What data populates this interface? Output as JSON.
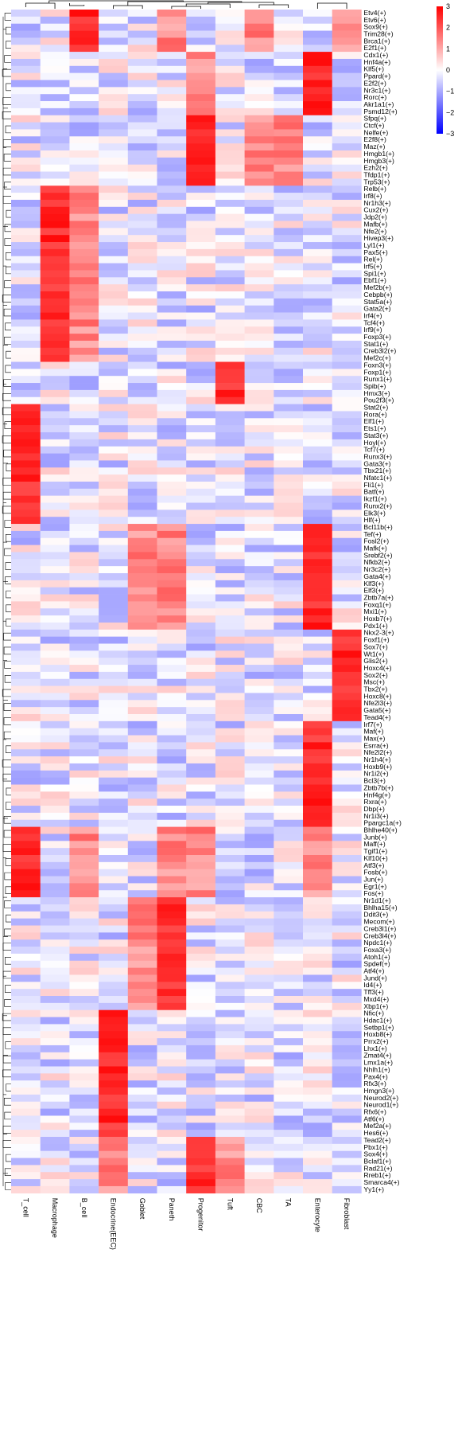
{
  "chart_data": {
    "type": "heatmap",
    "title": "",
    "xlabel": "",
    "ylabel": "",
    "columns": [
      "T_cell",
      "Macrophage",
      "B_cell",
      "Endocrine(EEC)",
      "Goblet",
      "Paneth",
      "Progenitor",
      "Tuft",
      "CBC",
      "TA",
      "Enterocyte",
      "Fibroblast"
    ],
    "rows": [
      "Etv4(+)",
      "Etv6(+)",
      "Sox9(+)",
      "Trim28(+)",
      "Brca1(+)",
      "E2f1(+)",
      "Cdx1(+)",
      "Hnf4a(+)",
      "Klf5(+)",
      "Ppard(+)",
      "E2f2(+)",
      "Nr3c1(+)",
      "Rorc(+)",
      "Akr1a1(+)",
      "Psmd12(+)",
      "Sfpq(+)",
      "Ctcf(+)",
      "Nelfe(+)",
      "E2f8(+)",
      "Maz(+)",
      "Hmgb1(+)",
      "Hmgb3(+)",
      "Ezh2(+)",
      "Tfdp1(+)",
      "Trp53(+)",
      "Relb(+)",
      "Irf8(+)",
      "Nr1h3(+)",
      "Cux2(+)",
      "Jdp2(+)",
      "Mafb(+)",
      "Nfe2(+)",
      "Hivep3(+)",
      "Lyl1(+)",
      "Pax5(+)",
      "Rel(+)",
      "Irf5(+)",
      "Spi1(+)",
      "Ebf1(+)",
      "Mef2b(+)",
      "Cebpb(+)",
      "Stat5a(+)",
      "Gata2(+)",
      "Irf4(+)",
      "Tcf4(+)",
      "Irf9(+)",
      "Foxp3(+)",
      "Stat1(+)",
      "Creb3l2(+)",
      "Mef2c(+)",
      "Foxn3(+)",
      "Foxp1(+)",
      "Runx1(+)",
      "Spib(+)",
      "Hmx3(+)",
      "Pou2f3(+)",
      "Stat2(+)",
      "Rora(+)",
      "Elf1(+)",
      "Ets1(+)",
      "Stat3(+)",
      "Hoyl(+)",
      "Tcf7(+)",
      "Runx3(+)",
      "Gata3(+)",
      "Tbx21(+)",
      "Nfatc1(+)",
      "Fli1(+)",
      "Batf(+)",
      "Ikzf1(+)",
      "Runx2(+)",
      "Elk3(+)",
      "Hlf(+)",
      "Bcl11b(+)",
      "Tef(+)",
      "Fosl2(+)",
      "Mafk(+)",
      "Srebf2(+)",
      "Nfkb2(+)",
      "Nr3c2(+)",
      "Gata4(+)",
      "Klf3(+)",
      "Elf3(+)",
      "Zbtb7a(+)",
      "Foxq1(+)",
      "Mxi1(+)",
      "Hoxb7(+)",
      "Pdx1(+)",
      "Nkx2-3(+)",
      "Foxf1(+)",
      "Sox7(+)",
      "Wt1(+)",
      "Glis2(+)",
      "Hoxc4(+)",
      "Sox2(+)",
      "Msc(+)",
      "Tbx2(+)",
      "Hoxc8(+)",
      "Nfe2l3(+)",
      "Gata5(+)",
      "Tead4(+)",
      "Irf7(+)",
      "Maf(+)",
      "Max(+)",
      "Esrra(+)",
      "Nfe2l2(+)",
      "Nr1h4(+)",
      "Hoxb9(+)",
      "Nr1i2(+)",
      "Bcl3(+)",
      "Zbtb7b(+)",
      "Hnf4g(+)",
      "Rxra(+)",
      "Dbp(+)",
      "Nr1i3(+)",
      "Ppargc1a(+)",
      "Bhlhe40(+)",
      "Junb(+)",
      "Maff(+)",
      "Tgif1(+)",
      "Klf10(+)",
      "Atf3(+)",
      "Fosb(+)",
      "Jun(+)",
      "Egr1(+)",
      "Fos(+)",
      "Nr1d1(+)",
      "Bhlha15(+)",
      "Ddit3(+)",
      "Mecom(+)",
      "Creb3l1(+)",
      "Creb3l4(+)",
      "Npdc1(+)",
      "Foxa3(+)",
      "Atoh1(+)",
      "Spdef(+)",
      "Atf4(+)",
      "Jund(+)",
      "Id4(+)",
      "Tff3(+)",
      "Mxd4(+)",
      "Xbp1(+)",
      "Nfic(+)",
      "Hdac1(+)",
      "Setbp1(+)",
      "Hoxb8(+)",
      "Prrx2(+)",
      "Lhx1(+)",
      "Zmat4(+)",
      "Lmx1a(+)",
      "Nhlh1(+)",
      "Pax4(+)",
      "Rfx3(+)",
      "Hmgn3(+)",
      "Neurod2(+)",
      "Neurod1(+)",
      "Rfx6(+)",
      "Atf6(+)",
      "Mef2a(+)",
      "Hes6(+)",
      "Tead2(+)",
      "Pbx1(+)",
      "Sox4(+)",
      "Bclaf1(+)",
      "Rad21(+)",
      "Rreb1(+)",
      "Smarca4(+)",
      "Yy1(+)"
    ],
    "colorbar": {
      "ticks": [
        3,
        2,
        1,
        0,
        -1,
        -2,
        -3
      ],
      "tick_labels": [
        "3",
        "2",
        "1",
        "0",
        "−1",
        "−2",
        "−3"
      ],
      "range": [
        -3,
        3
      ],
      "low_color": "#0000ff",
      "mid_color": "#ffffff",
      "high_color": "#ff0000"
    },
    "blocks": [
      {
        "rows": [
          "Etv4(+)",
          "Etv6(+)",
          "Sox9(+)",
          "Trim28(+)",
          "Brca1(+)",
          "E2f1(+)"
        ],
        "high": [
          "B_cell",
          "CBC",
          "Fibroblast",
          "Paneth"
        ]
      },
      {
        "rows": [
          "Cdx1(+)",
          "Hnf4a(+)",
          "Klf5(+)",
          "Ppard(+)",
          "E2f2(+)",
          "Nr3c1(+)",
          "Rorc(+)",
          "Akr1a1(+)",
          "Psmd12(+)"
        ],
        "high": [
          "Enterocyte",
          "Progenitor"
        ]
      },
      {
        "rows": [
          "Sfpq(+)",
          "Ctcf(+)",
          "Nelfe(+)",
          "E2f8(+)",
          "Maz(+)",
          "Hmgb1(+)",
          "Hmgb3(+)",
          "Ezh2(+)",
          "Tfdp1(+)",
          "Trp53(+)"
        ],
        "high": [
          "Progenitor",
          "CBC",
          "TA"
        ]
      },
      {
        "rows": [
          "Relb(+)",
          "Irf8(+)",
          "Nr1h3(+)",
          "Cux2(+)",
          "Jdp2(+)",
          "Mafb(+)",
          "Nfe2(+)",
          "Hivep3(+)",
          "Lyl1(+)",
          "Pax5(+)",
          "Rel(+)",
          "Irf5(+)",
          "Spi1(+)",
          "Ebf1(+)",
          "Mef2b(+)",
          "Cebpb(+)",
          "Stat5a(+)",
          "Gata2(+)",
          "Irf4(+)",
          "Tcf4(+)",
          "Irf9(+)",
          "Foxp3(+)",
          "Stat1(+)",
          "Creb3l2(+)",
          "Mef2c(+)"
        ],
        "high": [
          "Macrophage",
          "B_cell"
        ]
      },
      {
        "rows": [
          "Foxn3(+)",
          "Foxp1(+)",
          "Runx1(+)",
          "Spib(+)",
          "Hmx3(+)",
          "Pou2f3(+)"
        ],
        "high": [
          "Tuft"
        ]
      },
      {
        "rows": [
          "Stat2(+)",
          "Rora(+)",
          "Elf1(+)",
          "Ets1(+)",
          "Stat3(+)",
          "Hoyl(+)",
          "Tcf7(+)",
          "Runx3(+)",
          "Gata3(+)",
          "Tbx21(+)",
          "Nfatc1(+)",
          "Fli1(+)",
          "Batf(+)",
          "Ikzf1(+)",
          "Runx2(+)",
          "Elk3(+)",
          "Hlf(+)"
        ],
        "high": [
          "T_cell"
        ]
      },
      {
        "rows": [
          "Bcl11b(+)",
          "Tef(+)",
          "Fosl2(+)",
          "Mafk(+)",
          "Srebf2(+)",
          "Nfkb2(+)",
          "Nr3c2(+)",
          "Gata4(+)",
          "Klf3(+)",
          "Elf3(+)",
          "Zbtb7a(+)",
          "Foxq1(+)",
          "Mxi1(+)",
          "Hoxb7(+)",
          "Pdx1(+)"
        ],
        "high": [
          "Enterocyte",
          "Goblet",
          "Paneth"
        ]
      },
      {
        "rows": [
          "Nkx2-3(+)",
          "Foxf1(+)",
          "Sox7(+)",
          "Wt1(+)",
          "Glis2(+)",
          "Hoxc4(+)",
          "Sox2(+)",
          "Msc(+)",
          "Tbx2(+)",
          "Hoxc8(+)",
          "Nfe2l3(+)",
          "Gata5(+)",
          "Tead4(+)"
        ],
        "high": [
          "Fibroblast"
        ]
      },
      {
        "rows": [
          "Irf7(+)",
          "Maf(+)",
          "Max(+)",
          "Esrra(+)",
          "Nfe2l2(+)",
          "Nr1h4(+)",
          "Hoxb9(+)",
          "Nr1i2(+)",
          "Bcl3(+)",
          "Zbtb7b(+)",
          "Hnf4g(+)",
          "Rxra(+)",
          "Dbp(+)",
          "Nr1i3(+)",
          "Ppargc1a(+)"
        ],
        "high": [
          "Enterocyte"
        ]
      },
      {
        "rows": [
          "Bhlhe40(+)",
          "Junb(+)",
          "Maff(+)",
          "Tgif1(+)",
          "Klf10(+)",
          "Atf3(+)",
          "Fosb(+)",
          "Jun(+)",
          "Egr1(+)",
          "Fos(+)"
        ],
        "high": [
          "T_cell",
          "B_cell",
          "Paneth",
          "Progenitor",
          "Enterocyte"
        ]
      },
      {
        "rows": [
          "Nr1d1(+)",
          "Bhlha15(+)",
          "Ddit3(+)",
          "Mecom(+)",
          "Creb3l1(+)",
          "Creb3l4(+)",
          "Npdc1(+)",
          "Foxa3(+)",
          "Atoh1(+)",
          "Spdef(+)",
          "Atf4(+)",
          "Jund(+)",
          "Id4(+)",
          "Tff3(+)",
          "Mxd4(+)",
          "Xbp1(+)"
        ],
        "high": [
          "Paneth",
          "Goblet"
        ]
      },
      {
        "rows": [
          "Nfic(+)",
          "Hdac1(+)",
          "Setbp1(+)",
          "Hoxb8(+)",
          "Prrx2(+)",
          "Lhx1(+)",
          "Zmat4(+)",
          "Lmx1a(+)",
          "Nhlh1(+)",
          "Pax4(+)",
          "Rfx3(+)",
          "Hmgn3(+)",
          "Neurod2(+)",
          "Neurod1(+)",
          "Rfx6(+)",
          "Atf6(+)",
          "Mef2a(+)",
          "Hes6(+)"
        ],
        "high": [
          "Endocrine(EEC)"
        ]
      },
      {
        "rows": [
          "Tead2(+)",
          "Pbx1(+)",
          "Sox4(+)",
          "Bclaf1(+)",
          "Rad21(+)",
          "Rreb1(+)",
          "Smarca4(+)",
          "Yy1(+)"
        ],
        "high": [
          "Progenitor",
          "Tuft",
          "Endocrine(EEC)"
        ]
      }
    ],
    "grid": false,
    "legend": "top-right"
  }
}
